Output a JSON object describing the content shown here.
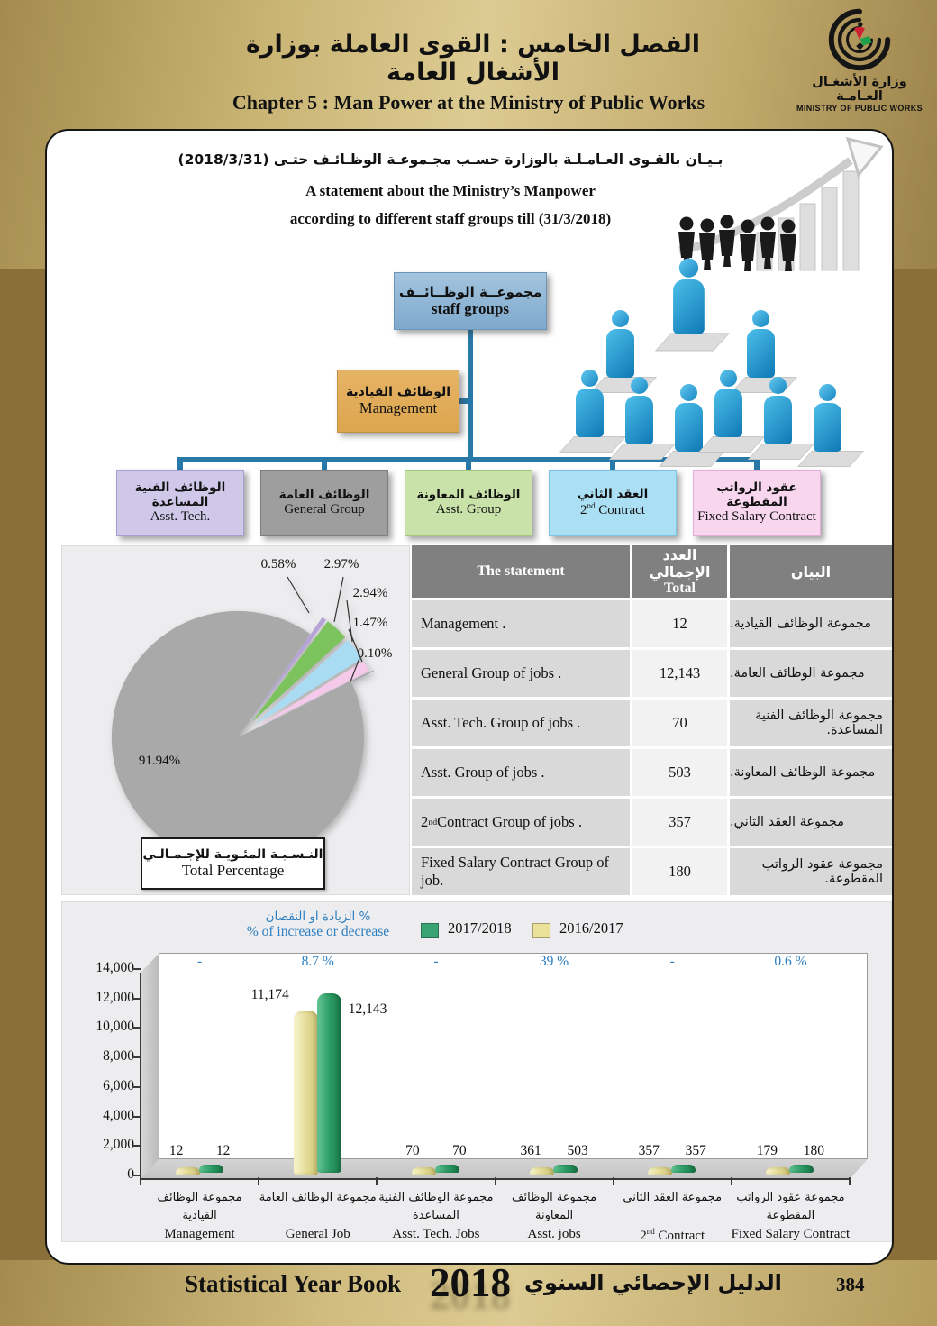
{
  "theme": {
    "page_brown": "#8a7038",
    "gold_band": "#dccb92",
    "card_border": "#161616",
    "connector_blue": "#2878a8",
    "accent_blue": "#2d7fc1",
    "table_header_gray": "#808080",
    "panel_gray": "#ededef"
  },
  "header": {
    "title_ar": "الفصل الخامس : القوى العاملة بوزارة الأشغال العامة",
    "title_en": "Chapter 5 : Man Power at the Ministry of Public Works",
    "logo_ar": "وزارة الأشغـال العـامـة",
    "logo_en": "MINISTRY OF PUBLIC WORKS"
  },
  "statement": {
    "ar": "بـيـان بالقـوى العـامـلـة بالوزارة حسـب مجـموعـة الوظـائـف حتـى (2018/3/31)",
    "en1": "A statement about the Ministry’s Manpower",
    "en2": "according to different staff groups till (31/3/2018)"
  },
  "orgchart": {
    "root": {
      "ar": "مجموعــة الوظــائــف",
      "en": "staff groups"
    },
    "management": {
      "ar": "الوظائف القيادية",
      "en": "Management"
    },
    "groups": [
      {
        "ar": "الوظائف الفنية المساعدة",
        "en_pre": "Asst. Tech.",
        "en_sup": "",
        "en_post": "",
        "color": "#cfc8e8",
        "border": "#a89ecf"
      },
      {
        "ar": "الوظائف العامة",
        "en_pre": "General Group",
        "en_sup": "",
        "en_post": "",
        "color": "#9e9e9e",
        "border": "#7f7f7f"
      },
      {
        "ar": "الوظائف المعاونة",
        "en_pre": "Asst. Group",
        "en_sup": "",
        "en_post": "",
        "color": "#c9e2a9",
        "border": "#a3c87e"
      },
      {
        "ar": "العقد الثاني",
        "en_pre": "2",
        "en_sup": "nd",
        "en_post": " Contract",
        "color": "#abdff4",
        "border": "#7cc3e4"
      },
      {
        "ar": "عقود الرواتب المقطوعة",
        "en_pre": "Fixed Salary Contract",
        "en_sup": "",
        "en_post": "",
        "color": "#f8d7ee",
        "border": "#e3aed6"
      }
    ]
  },
  "table": {
    "header_statement": "The statement",
    "header_total_ar": "العدد الإجمالي",
    "header_total_en": "Total",
    "header_bayan": "البيان",
    "rows": [
      {
        "en_pre": "Management .",
        "en_sup": "",
        "en_post": "",
        "total": "12",
        "ar": "مجموعة الوظائف القيادية."
      },
      {
        "en_pre": "General Group of jobs .",
        "en_sup": "",
        "en_post": "",
        "total": "12,143",
        "ar": "مجموعة الوظائف العامة."
      },
      {
        "en_pre": "Asst. Tech. Group of jobs .",
        "en_sup": "",
        "en_post": "",
        "total": "70",
        "ar": "مجموعة الوظائف الفنية المساعدة."
      },
      {
        "en_pre": "Asst. Group of jobs .",
        "en_sup": "",
        "en_post": "",
        "total": "503",
        "ar": "مجموعة الوظائف المعاونة."
      },
      {
        "en_pre": "2",
        "en_sup": "nd",
        "en_post": " Contract Group of jobs .",
        "total": "357",
        "ar": "مجموعة العقد الثاني."
      },
      {
        "en_pre": "Fixed Salary Contract Group of job.",
        "en_sup": "",
        "en_post": "",
        "total": "180",
        "ar": "مجموعة عقود الرواتب المقطوعة."
      }
    ]
  },
  "chart_data": [
    {
      "type": "pie",
      "title_ar": "النـسـبـة المئـويـة للإجـمـالـي",
      "title_en": "Total Percentage",
      "slices": [
        {
          "label": "91.94%",
          "value": 91.94,
          "color": "#a9a9a9"
        },
        {
          "label": "0.58%",
          "value": 0.58,
          "color": "#b5a3d8"
        },
        {
          "label": "2.97%",
          "value": 2.97,
          "color": "#7cc35e"
        },
        {
          "label": "2.94%",
          "value": 2.94,
          "color": "#a9dcf2"
        },
        {
          "label": "1.47%",
          "value": 1.47,
          "color": "#f5c9ea"
        },
        {
          "label": "0.10%",
          "value": 0.1,
          "color": "#9595a5"
        }
      ],
      "legend_position": "none",
      "grid": false
    },
    {
      "type": "bar",
      "categories_ar": [
        "مجموعة الوظائف القيادية",
        "مجموعة الوظائف العامة",
        "مجموعة الوظائف الفنية المساعدة",
        "مجموعة الوظائف المعاونة",
        "مجموعة العقد الثاني",
        "مجموعة عقود الرواتب المقطوعة"
      ],
      "categories_en": [
        {
          "en_pre": "Management",
          "en_sup": "",
          "en_post": ""
        },
        {
          "en_pre": "General Job",
          "en_sup": "",
          "en_post": ""
        },
        {
          "en_pre": "Asst. Tech. Jobs",
          "en_sup": "",
          "en_post": ""
        },
        {
          "en_pre": "Asst. jobs",
          "en_sup": "",
          "en_post": ""
        },
        {
          "en_pre": "2",
          "en_sup": "nd",
          "en_post": " Contract"
        },
        {
          "en_pre": "Fixed Salary Contract",
          "en_sup": "",
          "en_post": ""
        }
      ],
      "series": [
        {
          "name": "2016/2017",
          "color": "#e3da94",
          "values": [
            12,
            11174,
            70,
            361,
            357,
            179
          ]
        },
        {
          "name": "2017/2018",
          "color": "#2b9a62",
          "values": [
            12,
            12143,
            70,
            503,
            357,
            180
          ]
        }
      ],
      "change_row": [
        "-",
        "8.7 %",
        "-",
        "39 %",
        "-",
        "0.6 %"
      ],
      "legend_note_ar": "% الزيادة او النقصان",
      "legend_note_en": "% of increase or decrease",
      "ylim": [
        0,
        14000
      ],
      "ytick_step": 2000,
      "yticks": [
        "0",
        "2,000",
        "4,000",
        "6,000",
        "8,000",
        "10,000",
        "12,000",
        "14,000"
      ],
      "grid": false,
      "legend_position": "top"
    }
  ],
  "footer": {
    "book_en": "Statistical Year Book",
    "year": "2018",
    "book_ar": "الدليل الإحصائي السنوي",
    "page_number": "384"
  }
}
